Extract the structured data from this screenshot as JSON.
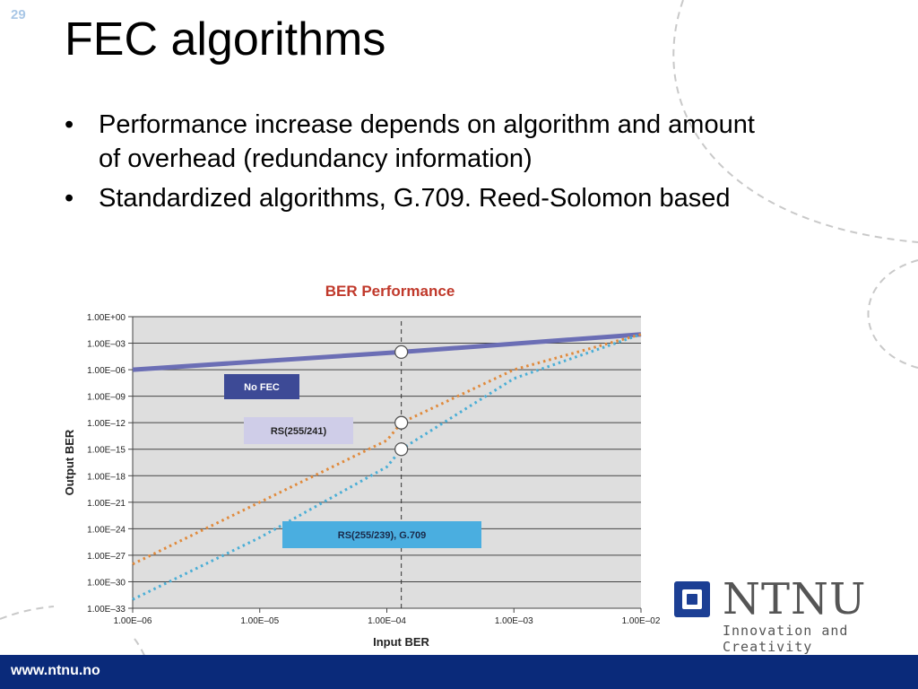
{
  "slide": {
    "number": "29",
    "title": "FEC algorithms",
    "bullet_char": "•",
    "bullets": [
      "Performance increase depends on algorithm and amount of overhead (redundancy information)",
      "Standardized algorithms, G.709. Reed-Solomon based"
    ]
  },
  "logo": {
    "word": "NTNU",
    "tagline": "Innovation and Creativity"
  },
  "footer": {
    "url": "www.ntnu.no"
  },
  "colors": {
    "title_text": "#000000",
    "chart_title": "#c0392b",
    "plot_bg": "#dedede",
    "no_fec": "#6b6eb5",
    "rs241": "#e08a3c",
    "rs239": "#4aaed6",
    "no_fec_label_bg": "#3d4a96",
    "rs241_label_bg": "#cfcde8",
    "rs239_label_bg": "#4aaee0",
    "footer_bg": "#0a2a7a",
    "logo_blue": "#1c3f94"
  },
  "chart_data": {
    "type": "line",
    "title": "BER Performance",
    "xlabel": "Input BER",
    "ylabel": "Output BER",
    "x_scale": "log",
    "y_scale": "log",
    "xlim": [
      1e-06,
      0.01
    ],
    "ylim": [
      1e-33,
      1
    ],
    "x_ticks": [
      "1.00E–06",
      "1.00E–05",
      "1.00E–04",
      "1.00E–03",
      "1.00E–02"
    ],
    "x_tick_values": [
      1e-06,
      1e-05,
      0.0001,
      0.001,
      0.01
    ],
    "y_ticks": [
      "1.00E+00",
      "1.00E–03",
      "1.00E–06",
      "1.00E–09",
      "1.00E–12",
      "1.00E–15",
      "1.00E–18",
      "1.00E–21",
      "1.00E–24",
      "1.00E–27",
      "1.00E–30",
      "1.00E–33"
    ],
    "y_tick_values": [
      1,
      0.001,
      1e-06,
      1e-09,
      1e-12,
      1e-15,
      1e-18,
      1e-21,
      1e-24,
      1e-27,
      1e-30,
      1e-33
    ],
    "grid": true,
    "reference_line_x": 0.00013,
    "series": [
      {
        "name": "No FEC",
        "style": "solid",
        "x": [
          1e-06,
          0.00013,
          0.01
        ],
        "y": [
          1e-06,
          0.0001,
          0.01
        ],
        "markers_x": [
          0.00013
        ],
        "markers_y": [
          0.0001
        ]
      },
      {
        "name": "RS(255/241)",
        "style": "dotted",
        "x": [
          1e-06,
          1e-05,
          0.0001,
          0.00013,
          0.001,
          0.01
        ],
        "y": [
          1e-28,
          1e-21,
          1e-14,
          1e-12,
          1e-06,
          0.01
        ],
        "markers_x": [
          0.00013
        ],
        "markers_y": [
          1e-12
        ]
      },
      {
        "name": "RS(255/239), G.709",
        "style": "dotted",
        "x": [
          1e-06,
          1e-05,
          0.0001,
          0.00013,
          0.001,
          0.01
        ],
        "y": [
          1e-32,
          1e-25,
          1e-17,
          1e-15,
          1e-07,
          0.01
        ],
        "markers_x": [
          0.00013
        ],
        "markers_y": [
          1e-15
        ]
      }
    ]
  }
}
